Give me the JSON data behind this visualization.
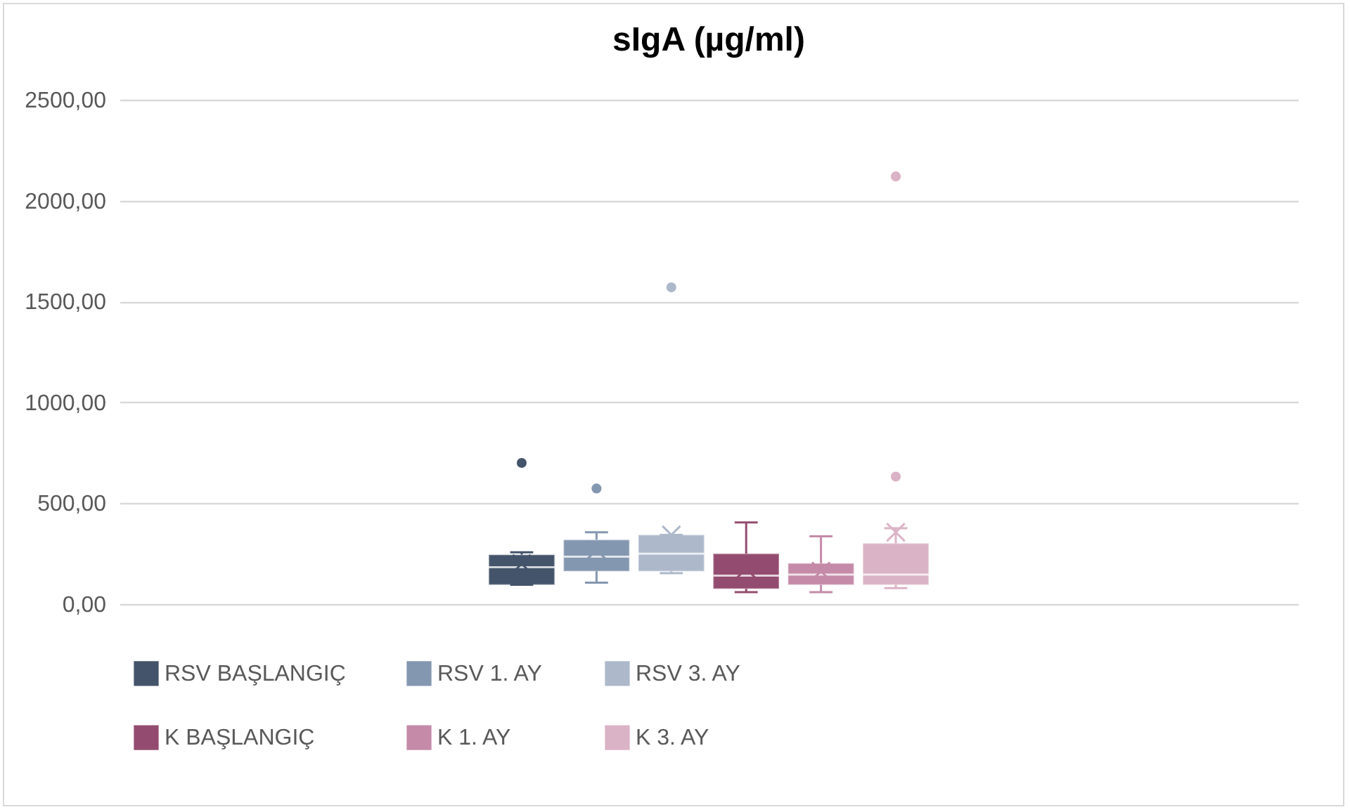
{
  "chart_data": {
    "type": "box",
    "title": "sIgA (µg/ml)",
    "categories": [
      null
    ],
    "series": [
      {
        "name": "RSV BAŞLANGIÇ",
        "color": "#44546a",
        "boxes": [
          {
            "low": 96,
            "q1": 96,
            "median": 183,
            "q3": 245,
            "high": 257,
            "mean": 200,
            "outliers": [
              700
            ]
          }
        ]
      },
      {
        "name": "RSV 1. AY",
        "color": "#8497b0",
        "boxes": [
          {
            "low": 106,
            "q1": 163,
            "median": 235,
            "q3": 319,
            "high": 356,
            "mean": 269,
            "outliers": [
              573
            ]
          }
        ]
      },
      {
        "name": "RSV 3. AY",
        "color": "#adb9ca",
        "boxes": [
          {
            "low": 153,
            "q1": 163,
            "median": 250,
            "q3": 343,
            "high": 343,
            "mean": 343,
            "outliers": [
              1570
            ]
          }
        ]
      },
      {
        "name": "K BAŞLANGIÇ",
        "color": "#934c6f",
        "boxes": [
          {
            "low": 59,
            "q1": 76,
            "median": 141,
            "q3": 250,
            "high": 405,
            "mean": 176
          }
        ]
      },
      {
        "name": "K 1. AY",
        "color": "#c48aa8",
        "boxes": [
          {
            "low": 59,
            "q1": 96,
            "median": 146,
            "q3": 202,
            "high": 336,
            "mean": 163
          }
        ]
      },
      {
        "name": "K 3. AY",
        "color": "#dbb3c6",
        "boxes": [
          {
            "low": 79,
            "q1": 96,
            "median": 146,
            "q3": 301,
            "high": 376,
            "mean": 356,
            "outliers": [
              632,
              2120
            ]
          }
        ]
      }
    ],
    "ylim": [
      0,
      2500
    ],
    "yticks": [
      {
        "value": 0,
        "label": "0,00"
      },
      {
        "value": 500,
        "label": "500,00"
      },
      {
        "value": 1000,
        "label": "1000,00"
      },
      {
        "value": 1500,
        "label": "1500,00"
      },
      {
        "value": 2000,
        "label": "2000,00"
      },
      {
        "value": 2500,
        "label": "2500,00"
      }
    ],
    "grid": "y",
    "legend": "bottom",
    "tick_labels": "y"
  }
}
